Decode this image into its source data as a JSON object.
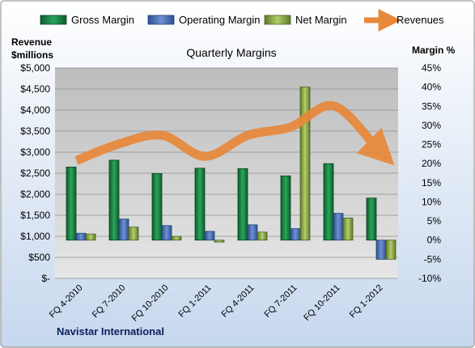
{
  "chart_data": {
    "type": "bar",
    "title": "Quarterly Margins",
    "footer_label": "Navistar International",
    "y_left_label_line1": "Revenue",
    "y_left_label_line2": "$millions",
    "y_right_label": "Margin %",
    "y_left_ticks": [
      "$-",
      "$500",
      "$1,000",
      "$1,500",
      "$2,000",
      "$2,500",
      "$3,000",
      "$3,500",
      "$4,000",
      "$4,500",
      "$5,000"
    ],
    "y_right_ticks": [
      "-10%",
      "-5%",
      "0%",
      "5%",
      "10%",
      "15%",
      "20%",
      "25%",
      "30%",
      "35%",
      "40%",
      "45%"
    ],
    "y_left_range": [
      0,
      5000
    ],
    "y_right_range": [
      -10,
      45
    ],
    "categories": [
      "FQ 4-2010",
      "FQ 7-2010",
      "FQ 10-2010",
      "FQ 1-2011",
      "FQ 4-2011",
      "FQ 7-2011",
      "FQ 10-2011",
      "FQ 1-2012"
    ],
    "series": [
      {
        "name": "Gross Margin",
        "type": "bar",
        "axis": "right",
        "color": "#1f8a4c",
        "values": [
          19.1,
          20.9,
          17.4,
          18.8,
          18.7,
          16.8,
          20.0,
          11.0
        ]
      },
      {
        "name": "Operating Margin",
        "type": "bar",
        "axis": "right",
        "color": "#4a72b8",
        "values": [
          1.8,
          5.5,
          3.8,
          2.3,
          4.0,
          3.0,
          7.0,
          -5.0
        ]
      },
      {
        "name": "Net Margin",
        "type": "bar",
        "axis": "right",
        "color": "#8aa94a",
        "values": [
          1.6,
          3.4,
          1.0,
          -0.5,
          2.1,
          40.0,
          5.8,
          -5.0
        ]
      },
      {
        "name": "Revenues",
        "type": "line",
        "axis": "left",
        "color": "#e8883a",
        "values": [
          2800,
          3200,
          3400,
          2900,
          3400,
          3600,
          4100,
          3100
        ]
      }
    ],
    "legend_position": "top",
    "grid": true
  }
}
